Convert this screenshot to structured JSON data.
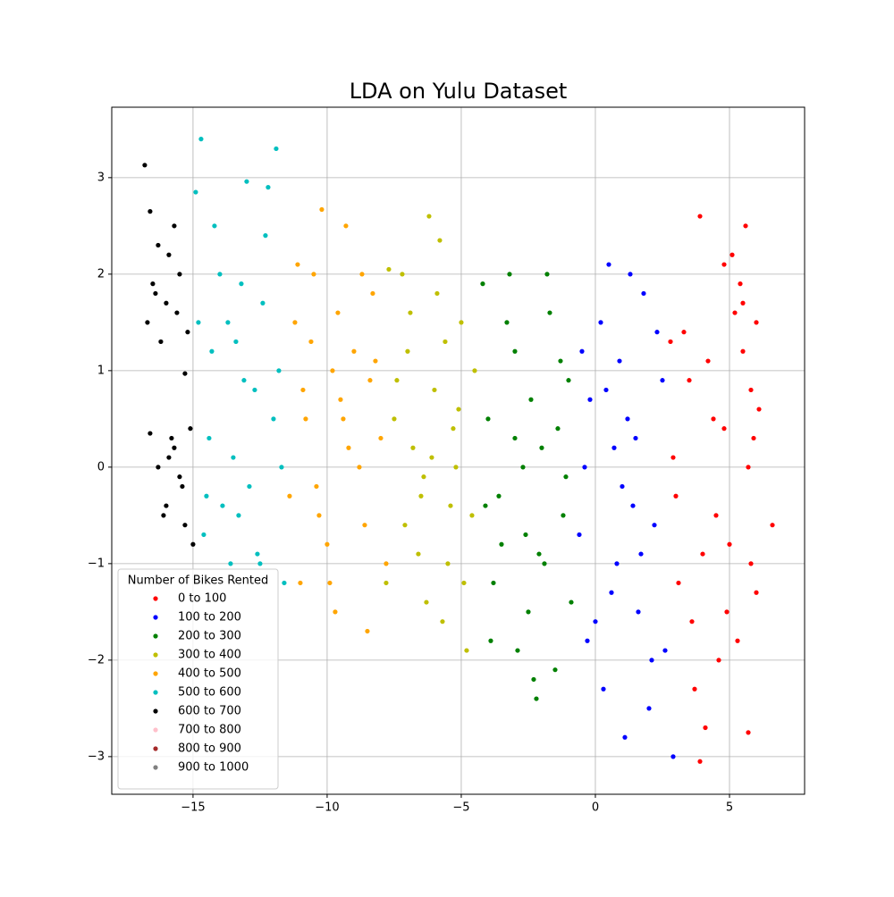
{
  "chart_data": {
    "type": "scatter",
    "title": "LDA on Yulu Dataset",
    "legend_title": "Number of Bikes Rented",
    "legend_position": "lower left",
    "grid": true,
    "xlim": [
      -18.03,
      7.8
    ],
    "ylim": [
      -3.39,
      3.73
    ],
    "xticks": [
      {
        "value": -15,
        "label": "−15"
      },
      {
        "value": -10,
        "label": "−10"
      },
      {
        "value": -5,
        "label": "−5"
      },
      0,
      5
    ],
    "yticks": [
      {
        "value": -3,
        "label": "−3"
      },
      {
        "value": -2,
        "label": "−2"
      },
      {
        "value": -1,
        "label": "−1"
      },
      0,
      1,
      2,
      3
    ],
    "series": [
      {
        "name": "0 to 100",
        "color": "#ff0000",
        "x": [
          5.5,
          5.8,
          5.2,
          4.8,
          5.9,
          6.0,
          4.5,
          3.9,
          3.5,
          3.1,
          2.9,
          5.6,
          5.3,
          4.1,
          3.7,
          4.9,
          5.7,
          6.1,
          3.3,
          4.4,
          5.0,
          5.4,
          3.0,
          4.6,
          5.8,
          6.6,
          3.9,
          4.2,
          5.1,
          5.7,
          3.6,
          4.8,
          2.8,
          5.5,
          6.0,
          4.0
        ],
        "y": [
          1.2,
          0.8,
          1.6,
          2.1,
          0.3,
          1.5,
          -0.5,
          2.6,
          0.9,
          -1.2,
          0.1,
          2.5,
          -1.8,
          -2.7,
          -2.3,
          -1.5,
          0.0,
          0.6,
          1.4,
          0.5,
          -0.8,
          1.9,
          -0.3,
          -2.0,
          -1.0,
          -0.6,
          -3.05,
          1.1,
          2.2,
          -2.75,
          -1.6,
          0.4,
          1.3,
          1.7,
          -1.3,
          -0.9
        ]
      },
      {
        "name": "100 to 200",
        "color": "#0000ff",
        "x": [
          0.2,
          0.8,
          1.5,
          2.1,
          -0.4,
          0.5,
          1.1,
          1.8,
          2.5,
          -0.6,
          0.0,
          0.9,
          1.4,
          2.0,
          2.6,
          -0.2,
          0.6,
          1.2,
          1.7,
          2.3,
          0.3,
          1.0,
          2.9,
          -0.5,
          1.6,
          0.7,
          2.2,
          -0.3,
          1.3,
          0.4
        ],
        "y": [
          1.5,
          -1.0,
          0.3,
          -2.0,
          0.0,
          2.1,
          -2.8,
          1.8,
          0.9,
          -0.7,
          -1.6,
          1.1,
          -0.4,
          -2.5,
          -1.9,
          0.7,
          -1.3,
          0.5,
          -0.9,
          1.4,
          -2.3,
          -0.2,
          -3.0,
          1.2,
          -1.5,
          0.2,
          -0.6,
          -1.8,
          2.0,
          0.8
        ]
      },
      {
        "name": "200 to 300",
        "color": "#008000",
        "x": [
          -4.0,
          -3.5,
          -3.0,
          -2.5,
          -2.0,
          -1.5,
          -1.0,
          -3.8,
          -3.2,
          -2.7,
          -2.2,
          -1.7,
          -1.2,
          -4.2,
          -3.6,
          -2.9,
          -2.4,
          -1.9,
          -1.4,
          -0.9,
          -3.3,
          -2.6,
          -1.8,
          -1.1,
          -3.9,
          -2.1,
          -1.3,
          -3.0,
          -2.3,
          -4.1
        ],
        "y": [
          0.5,
          -0.8,
          1.2,
          -1.5,
          0.2,
          -2.1,
          0.9,
          -1.2,
          2.0,
          0.0,
          -2.4,
          1.6,
          -0.5,
          1.9,
          -0.3,
          -1.9,
          0.7,
          -1.0,
          0.4,
          -1.4,
          1.5,
          -0.7,
          2.0,
          -0.1,
          -1.8,
          -0.9,
          1.1,
          0.3,
          -2.2,
          -0.4
        ]
      },
      {
        "name": "300 to 400",
        "color": "#bfbf00",
        "x": [
          -7.5,
          -7.0,
          -6.5,
          -6.0,
          -5.5,
          -5.0,
          -4.6,
          -7.8,
          -7.2,
          -6.8,
          -6.2,
          -5.7,
          -5.2,
          -4.8,
          -7.4,
          -6.6,
          -5.9,
          -5.3,
          -4.5,
          -7.1,
          -6.3,
          -5.6,
          -4.9,
          -6.9,
          -6.1,
          -5.4,
          -7.7,
          -5.8,
          -6.4,
          -5.1
        ],
        "y": [
          0.5,
          1.2,
          -0.3,
          0.8,
          -1.0,
          1.5,
          -0.5,
          -1.2,
          2.0,
          0.2,
          2.6,
          -1.6,
          0.0,
          -1.9,
          0.9,
          -0.9,
          1.8,
          0.4,
          1.0,
          -0.6,
          -1.4,
          1.3,
          -1.2,
          1.6,
          0.1,
          -0.4,
          2.05,
          2.35,
          -0.1,
          0.6
        ]
      },
      {
        "name": "400 to 500",
        "color": "#ffa500",
        "x": [
          -11.2,
          -10.8,
          -10.3,
          -9.8,
          -9.3,
          -8.8,
          -8.3,
          -7.8,
          -11.0,
          -10.5,
          -10.0,
          -9.5,
          -9.0,
          -8.5,
          -8.0,
          -11.4,
          -10.6,
          -9.7,
          -8.7,
          -10.2,
          -9.2,
          -8.2,
          -10.9,
          -9.9,
          -8.6,
          -9.6,
          -10.4,
          -11.1,
          -9.4,
          -8.4
        ],
        "y": [
          1.5,
          0.5,
          -0.5,
          1.0,
          2.5,
          0.0,
          1.8,
          -1.0,
          -1.2,
          2.0,
          -0.8,
          0.7,
          1.2,
          -1.7,
          0.3,
          -0.3,
          1.3,
          -1.5,
          2.0,
          2.67,
          0.2,
          1.1,
          0.8,
          -1.2,
          -0.6,
          1.6,
          -0.2,
          2.1,
          0.5,
          0.9
        ]
      },
      {
        "name": "500 to 600",
        "color": "#00bfbf",
        "x": [
          -14.7,
          -14.2,
          -13.7,
          -13.2,
          -12.7,
          -12.2,
          -11.8,
          -14.9,
          -14.4,
          -13.9,
          -13.4,
          -12.9,
          -12.4,
          -11.9,
          -14.6,
          -14.0,
          -13.5,
          -13.0,
          -12.5,
          -12.0,
          -11.6,
          -14.8,
          -13.3,
          -12.6,
          -11.7,
          -14.3,
          -13.6,
          -12.3,
          -13.1,
          -14.5
        ],
        "y": [
          3.4,
          2.5,
          1.5,
          1.9,
          0.8,
          2.9,
          1.0,
          2.85,
          0.3,
          -0.4,
          1.3,
          -0.2,
          1.7,
          3.3,
          -0.7,
          2.0,
          0.1,
          2.96,
          -1.0,
          0.5,
          -1.2,
          1.5,
          -0.5,
          -0.9,
          0.0,
          1.2,
          -1.0,
          2.4,
          0.9,
          -0.3
        ]
      },
      {
        "name": "600 to 700",
        "color": "#000000",
        "x": [
          -16.8,
          -16.6,
          -16.3,
          -16.0,
          -15.7,
          -15.5,
          -15.2,
          -16.5,
          -16.2,
          -15.9,
          -15.6,
          -15.3,
          -16.7,
          -16.4,
          -16.1,
          -15.8,
          -15.4,
          -16.3,
          -15.9,
          -15.5,
          -15.1,
          -16.6,
          -16.0,
          -15.7,
          -15.3,
          -15.0
        ],
        "y": [
          3.13,
          2.65,
          2.3,
          1.7,
          2.5,
          2.0,
          1.4,
          1.9,
          1.3,
          2.2,
          1.6,
          0.97,
          1.5,
          1.8,
          -0.5,
          0.3,
          -0.2,
          0.0,
          0.1,
          -0.1,
          0.4,
          0.35,
          -0.4,
          0.2,
          -0.6,
          -0.8
        ]
      },
      {
        "name": "700 to 800",
        "color": "#ffc0cb",
        "x": [],
        "y": []
      },
      {
        "name": "800 to 900",
        "color": "#a52a2a",
        "x": [],
        "y": []
      },
      {
        "name": "900 to 1000",
        "color": "#808080",
        "x": [],
        "y": []
      }
    ]
  }
}
